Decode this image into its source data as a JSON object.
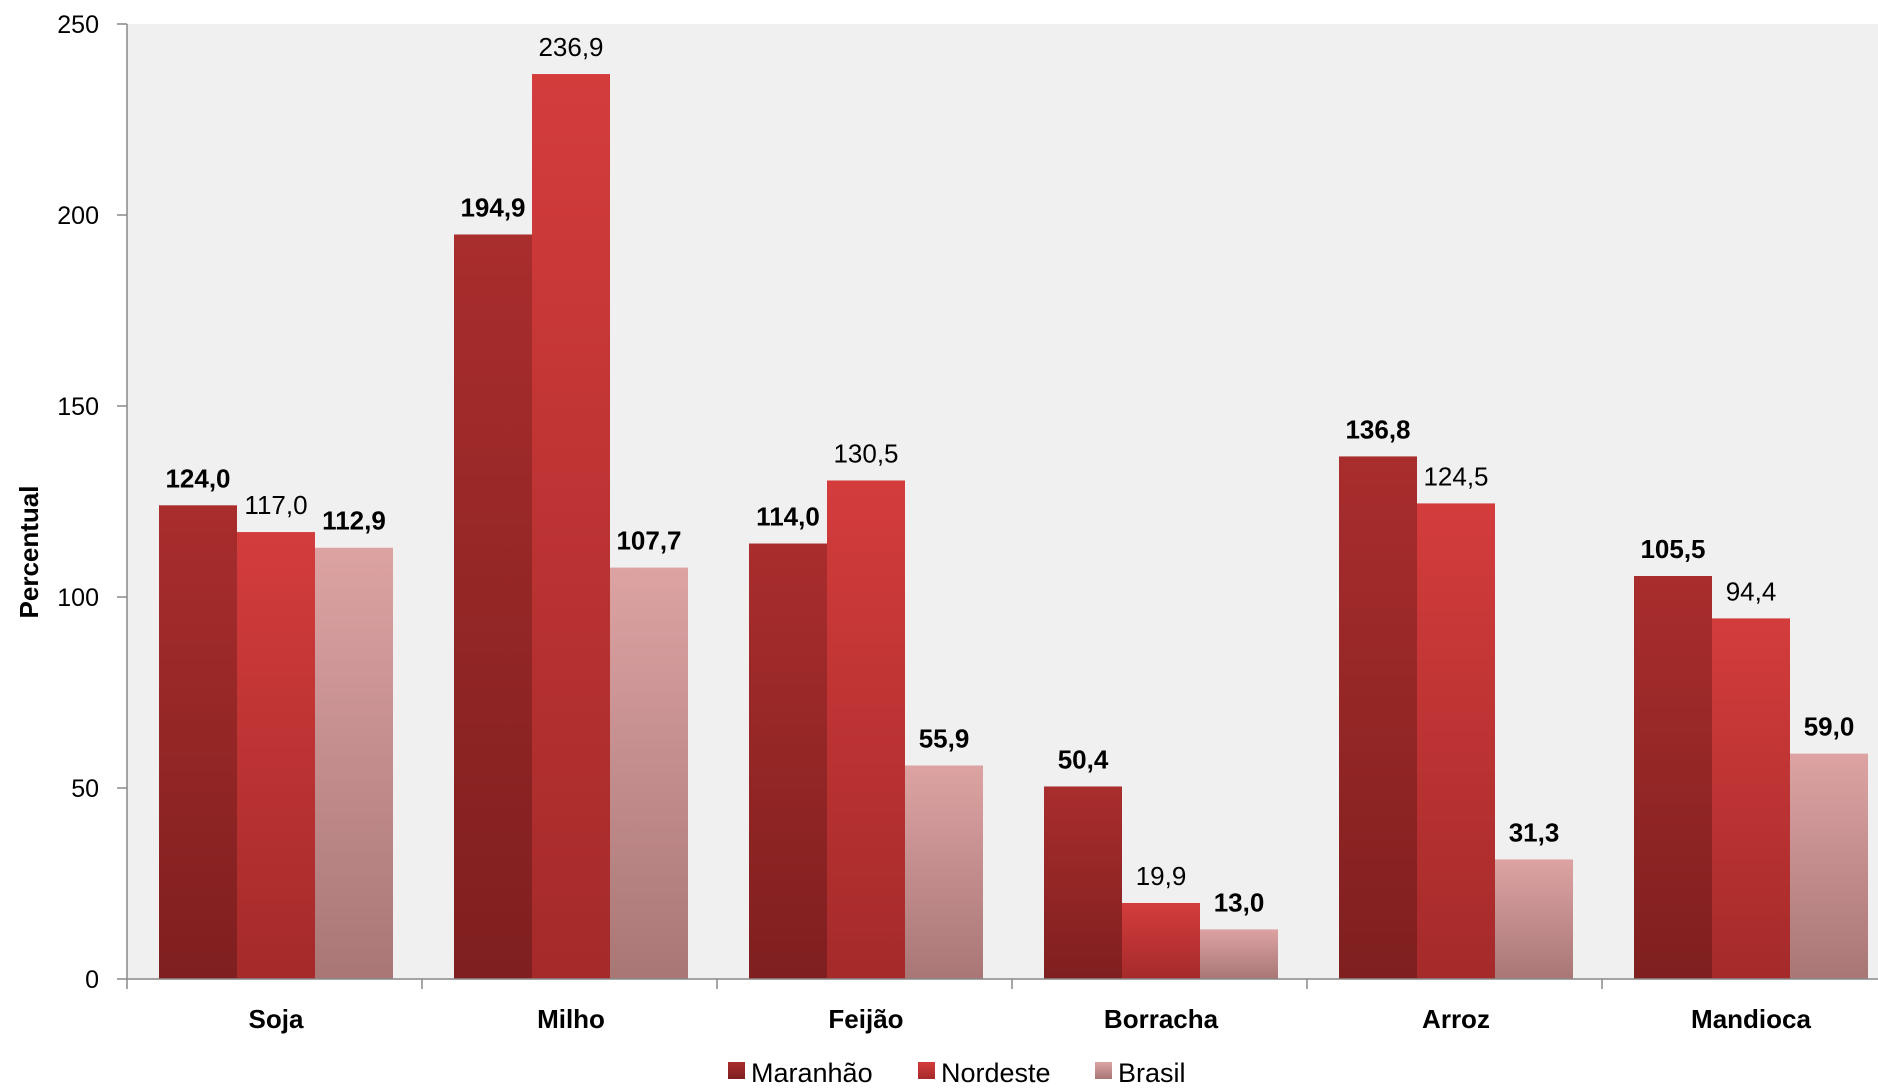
{
  "chart_data": {
    "type": "bar",
    "title": "",
    "xlabel": "",
    "ylabel": "Percentual",
    "ylim": [
      0,
      250
    ],
    "yticks": [
      0,
      50,
      100,
      150,
      200,
      250
    ],
    "categories": [
      "Soja",
      "Milho",
      "Feijão",
      "Borracha",
      "Arroz",
      "Mandioca"
    ],
    "series": [
      {
        "name": "Maranhão",
        "color_top": "#a92d2d",
        "color_bottom": "#7f1f1f",
        "values": [
          124.0,
          194.9,
          114.0,
          50.4,
          136.8,
          105.5
        ],
        "labels": [
          "124,0",
          "194,9",
          "114,0",
          "50,4",
          "136,8",
          "105,5"
        ],
        "bold": [
          true,
          true,
          true,
          true,
          true,
          true
        ]
      },
      {
        "name": "Nordeste",
        "color_top": "#d43c3c",
        "color_bottom": "#a52a2a",
        "values": [
          117.0,
          236.9,
          130.5,
          19.9,
          124.5,
          94.4
        ],
        "labels": [
          "117,0",
          "236,9",
          "130,5",
          "19,9",
          "124,5",
          "94,4"
        ],
        "bold": [
          false,
          false,
          false,
          false,
          false,
          false
        ]
      },
      {
        "name": "Brasil",
        "color_top": "#dda3a3",
        "color_bottom": "#a97676",
        "values": [
          112.9,
          107.7,
          55.9,
          13.0,
          31.3,
          59.0
        ],
        "labels": [
          "112,9",
          "107,7",
          "55,9",
          "13,0",
          "31,3",
          "59,0"
        ],
        "bold": [
          true,
          true,
          true,
          true,
          true,
          true
        ]
      }
    ],
    "grid": false,
    "plot_background": "#f0f0f0",
    "legend_position": "bottom"
  }
}
